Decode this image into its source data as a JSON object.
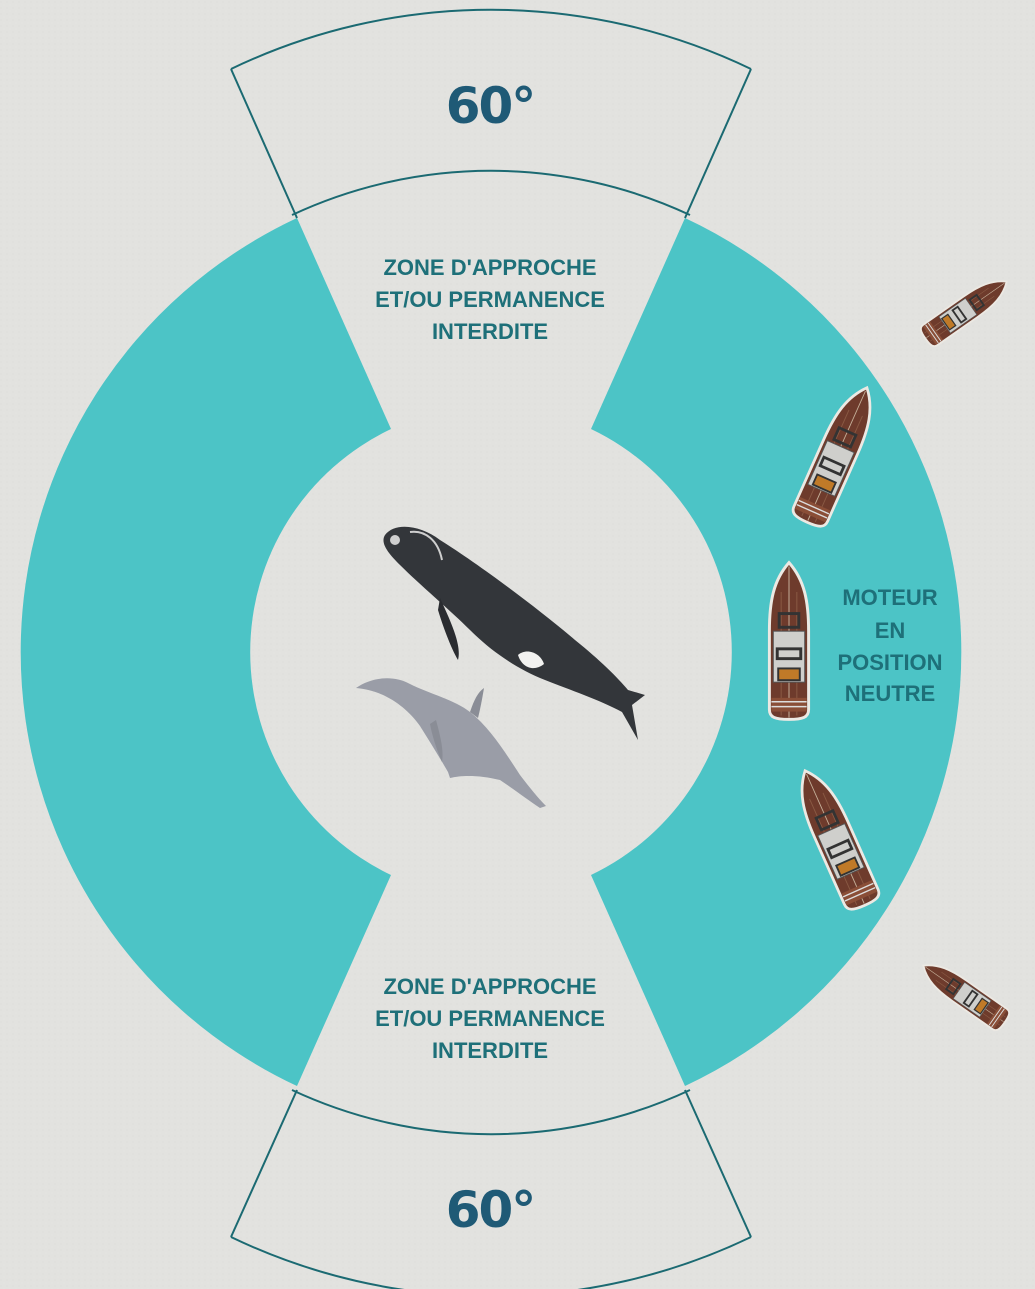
{
  "colors": {
    "background": "#e2e2df",
    "ring": "#4cc4c6",
    "sector_outline": "#1b6a72",
    "angle_text": "#1f5a76",
    "label_text": "#1e7079",
    "whale": "#33363a",
    "dolphin": "#9a9da7",
    "boat_hull": "#6e3b2c",
    "boat_deck": "#c9c9c6"
  },
  "sectors": {
    "top": {
      "angle_label": "60°",
      "zone_label_lines": [
        "ZONE D'APPROCHE",
        "ET/OU PERMANENCE",
        "INTERDITE"
      ]
    },
    "bottom": {
      "angle_label": "60°",
      "zone_label_lines": [
        "ZONE D'APPROCHE",
        "ET/OU PERMANENCE",
        "INTERDITE"
      ]
    }
  },
  "engine_label_lines": [
    "MOTEUR",
    "EN",
    "POSITION",
    "NEUTRE"
  ],
  "animals": [
    {
      "kind": "whale",
      "icon": "whale-icon"
    },
    {
      "kind": "dolphin",
      "icon": "dolphin-icon"
    }
  ],
  "boats": [
    {
      "icon": "boat-icon"
    },
    {
      "icon": "boat-icon"
    },
    {
      "icon": "boat-icon"
    },
    {
      "icon": "boat-icon"
    },
    {
      "icon": "boat-icon"
    }
  ]
}
